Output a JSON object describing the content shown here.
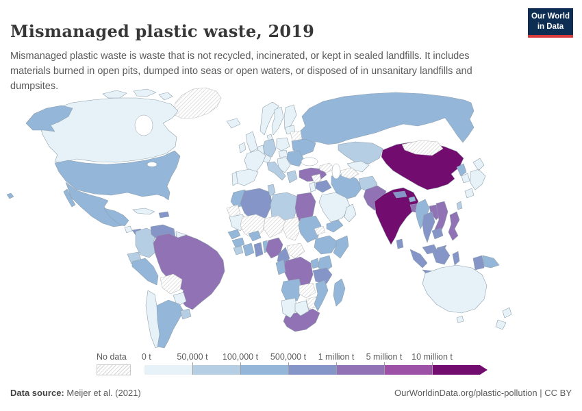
{
  "header": {
    "title": "Mismanaged plastic waste, 2019",
    "subtitle": "Mismanaged plastic waste is waste that is not recycled, incinerated, or kept in sealed landfills. It includes materials burned in open pits, dumped into seas or open waters, or disposed of in unsanitary landfills and dumpsites.",
    "logo_line1": "Our World",
    "logo_line2": "in Data",
    "logo_bg": "#0d2d52",
    "logo_accent": "#d73a3a"
  },
  "legend": {
    "no_data_label": "No data",
    "tick_labels": [
      "0 t",
      "50,000 t",
      "100,000 t",
      "500,000 t",
      "1 million t",
      "5 million t",
      "10 million t"
    ],
    "bin_colors": [
      "#e6f2f7",
      "#b6cee4",
      "#94b6d9",
      "#8595c8",
      "#9172b4",
      "#9c51a6",
      "#720c6e"
    ]
  },
  "footer": {
    "source_label": "Data source:",
    "source_value": "Meijer et al. (2021)",
    "link_text": "OurWorldinData.org/plastic-pollution",
    "separator": "|",
    "license_text": "CC BY"
  },
  "chart_data": {
    "type": "heatmap",
    "subtype": "world-choropleth",
    "title": "Mismanaged plastic waste, 2019",
    "unit": "tonnes per year",
    "legend_bins": [
      "0 t - 50,000 t",
      "50,000 t - 100,000 t",
      "100,000 t - 500,000 t",
      "500,000 t - 1 million t",
      "1 million t - 5 million t",
      "5 million t - 10 million t",
      "10 million t and over"
    ],
    "bin_colors": [
      "#e6f2f7",
      "#b6cee4",
      "#94b6d9",
      "#8595c8",
      "#9172b4",
      "#9c51a6",
      "#720c6e"
    ],
    "no_data_style": "diagonal-hatch",
    "country_bins": {
      "canada": 0,
      "united_states": 2,
      "mexico": 2,
      "central_america_north": 2,
      "costa_rica": 0,
      "panama": 3,
      "cuba": 0,
      "hispaniola": 3,
      "greenland": "nodata",
      "colombia": 1,
      "venezuela": 3,
      "guyana_suriname": 0,
      "ecuador": 1,
      "peru": 2,
      "brazil": 4,
      "bolivia": "nodata",
      "paraguay": 0,
      "chile": 0,
      "argentina": 2,
      "uruguay": 1,
      "iceland": 0,
      "united_kingdom": 0,
      "ireland": 0,
      "norway": 0,
      "sweden": 0,
      "finland": 0,
      "denmark": 0,
      "baltics": 0,
      "germany": 1,
      "central_europe": 0,
      "poland": 0,
      "belarus": "nodata",
      "ukraine": 2,
      "romania_bulgaria": 2,
      "hungary": 0,
      "balkans": 0,
      "greece": 1,
      "italy": 1,
      "france": 0,
      "spain": 0,
      "portugal": 0,
      "russia": 2,
      "turkey": 4,
      "caucasus": "nodata",
      "syria": "nodata",
      "iraq": 3,
      "iran": 2,
      "israel_jordan": 0,
      "saudi_arabia": 0,
      "yemen": 2,
      "oman": 0,
      "kazakhstan": 1,
      "uzbekistan": 0,
      "turkmenistan": "nodata",
      "afghanistan": 1,
      "pakistan": 4,
      "india": 6,
      "nepal": 3,
      "bhutan": 2,
      "bangladesh": 4,
      "sri_lanka": 3,
      "china": 6,
      "mongolia": "nodata",
      "north_korea": 2,
      "south_korea": 0,
      "taiwan": 1,
      "japan": 0,
      "myanmar": 2,
      "thailand": 3,
      "laos": 4,
      "vietnam": 4,
      "cambodia": 3,
      "malaysia": 3,
      "indonesia": 3,
      "papua_new_guinea": 2,
      "philippines": 4,
      "australia": 0,
      "new_zealand": 0,
      "morocco": 2,
      "western_sahara": "nodata",
      "algeria": 3,
      "tunisia": 1,
      "libya": 1,
      "egypt": 4,
      "mauritania": 0,
      "mali": "nodata",
      "niger": "nodata",
      "chad": "nodata",
      "sudan": 2,
      "eritrea": "nodata",
      "ethiopia": 2,
      "somalia": 2,
      "senegal": 2,
      "guinea": 2,
      "sierra_leone_liberia": 1,
      "ivory_coast": 2,
      "burkina_faso": 2,
      "ghana": 3,
      "togo_benin": 2,
      "nigeria": 4,
      "cameroon": 3,
      "central_african_republic": "nodata",
      "dr_congo": 4,
      "congo_gabon": 2,
      "uganda": 2,
      "kenya": 2,
      "tanzania": 3,
      "angola": 2,
      "zambia": "nodata",
      "zimbabwe": "nodata",
      "mozambique": 2,
      "madagascar": 2,
      "namibia": 0,
      "botswana": 0,
      "south_africa": 4
    }
  }
}
